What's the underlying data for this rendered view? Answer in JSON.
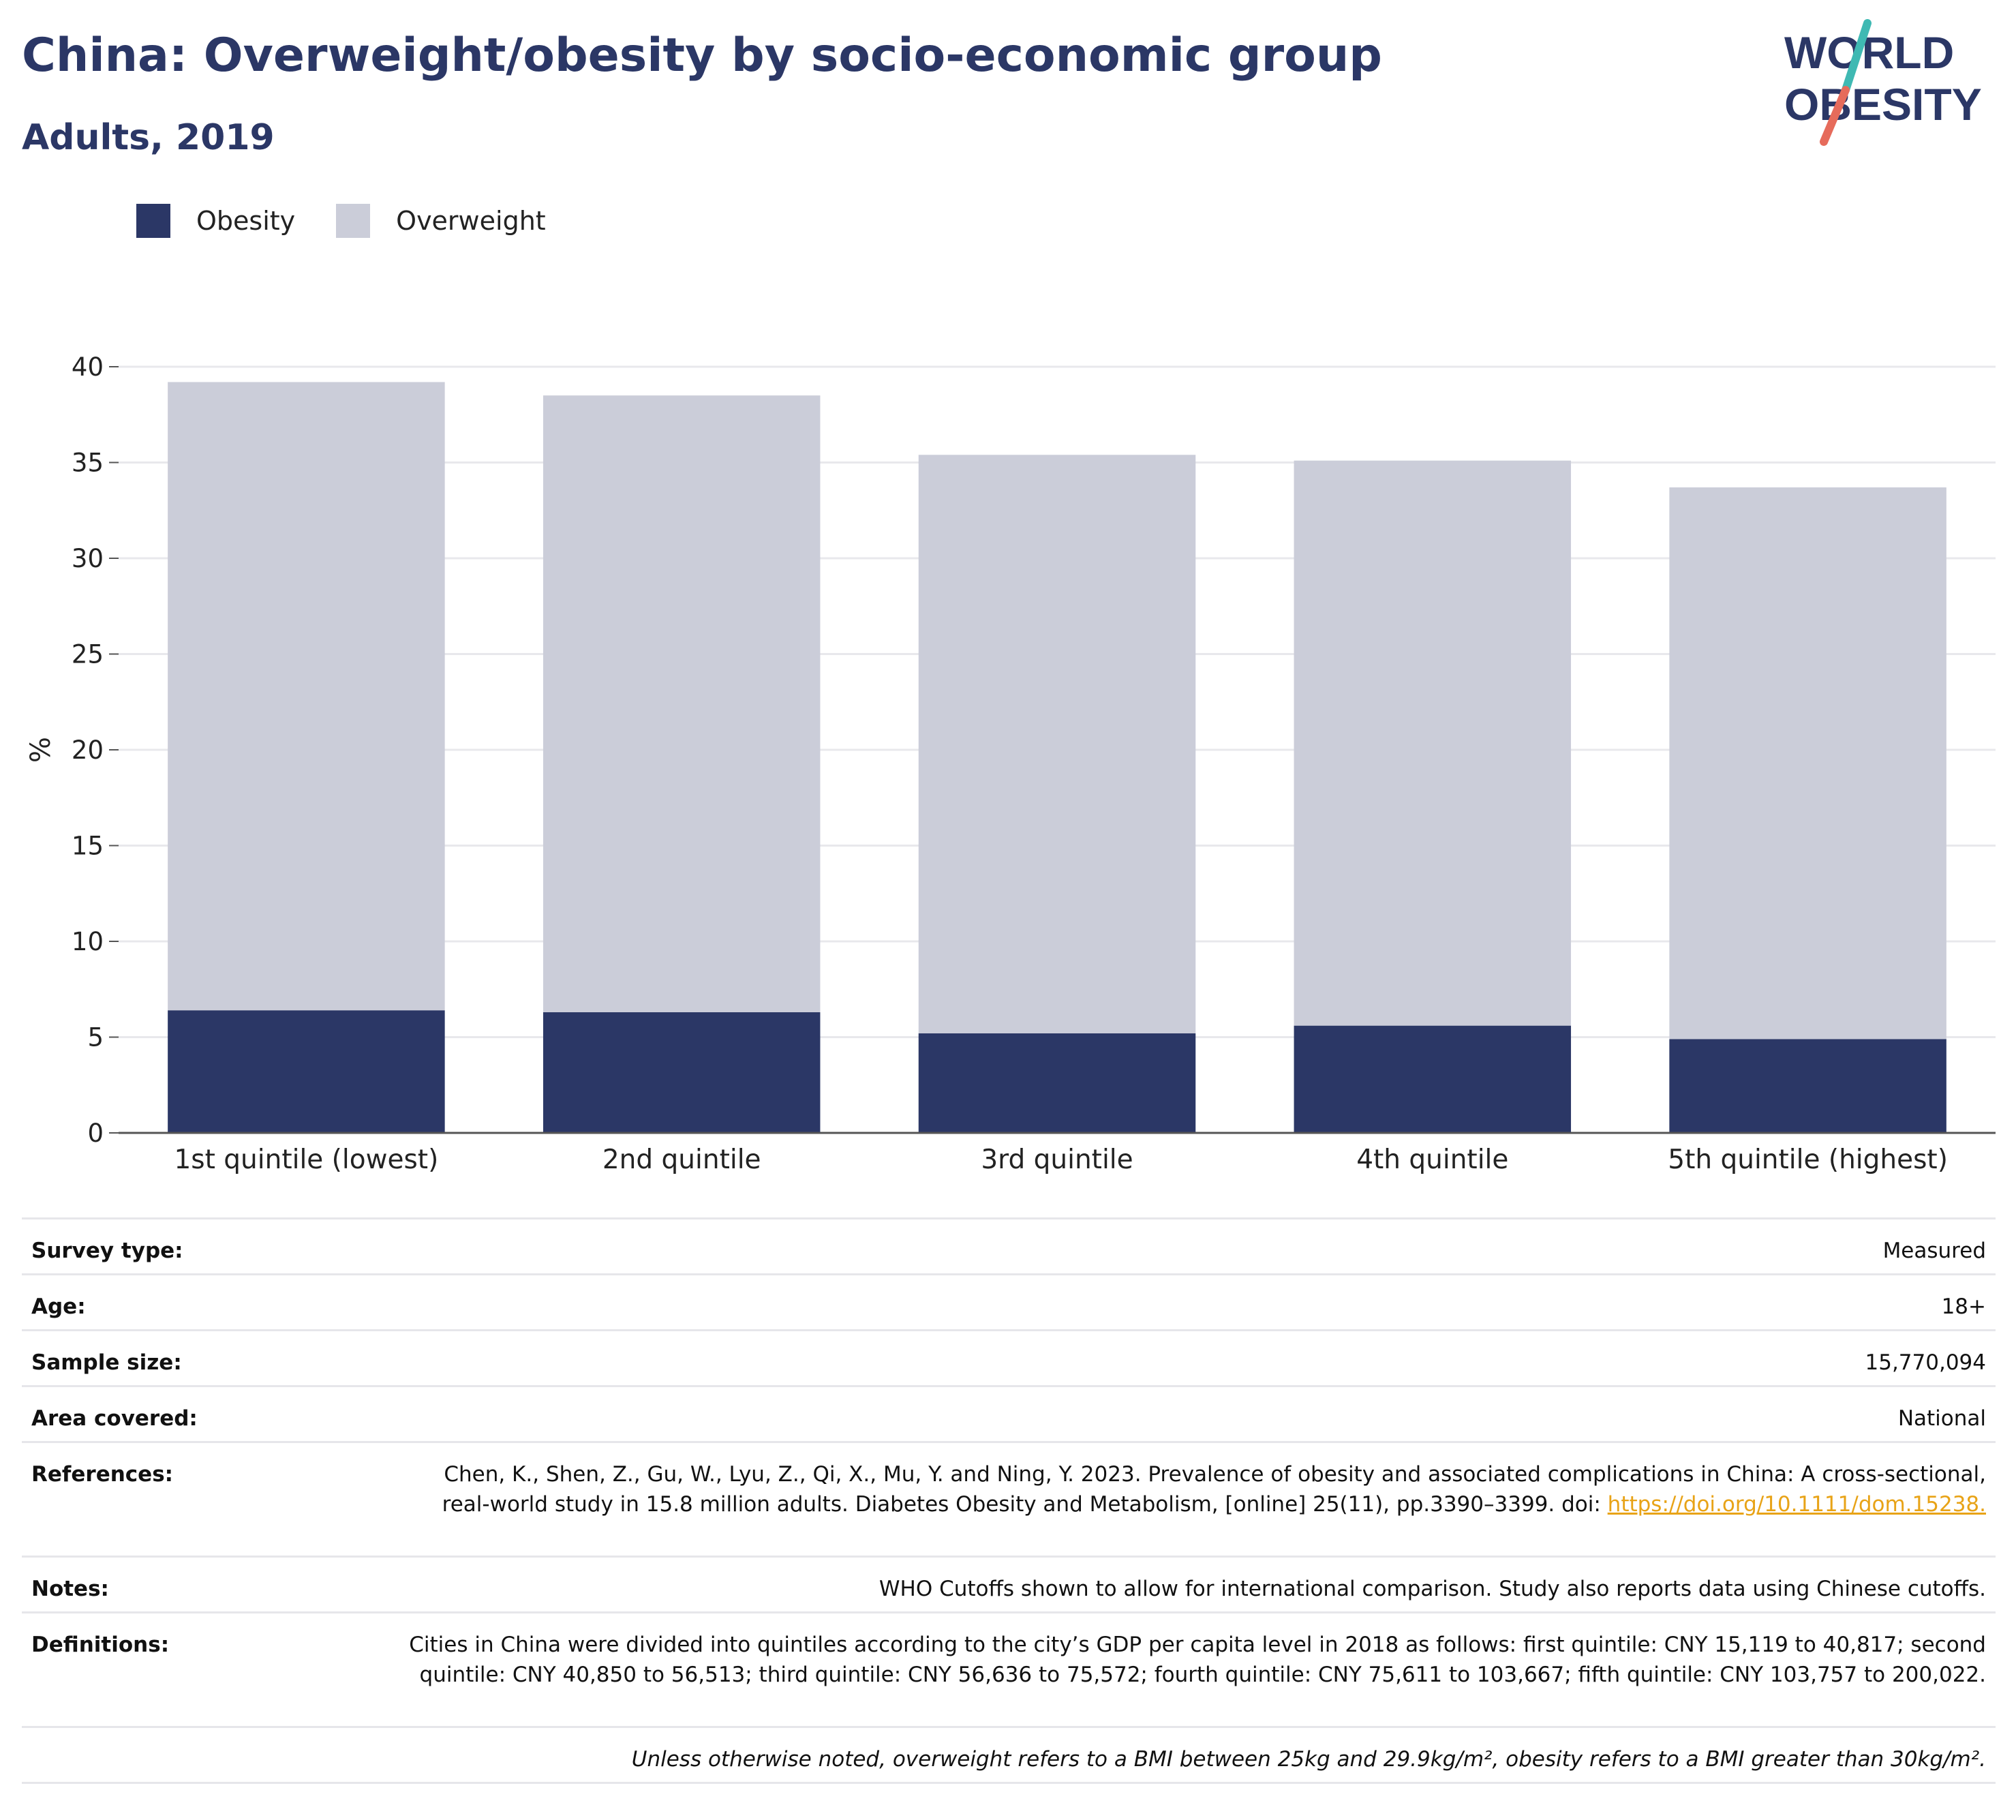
{
  "header": {
    "title": "China: Overweight/obesity by socio-economic group",
    "subtitle": "Adults, 2019",
    "logo_line1": "WORLD",
    "logo_line2": "OBESITY"
  },
  "colors": {
    "obesity": "#2b3766",
    "overweight": "#cbcdd9",
    "title": "#2b3766",
    "link": "#e8a317",
    "logo_teal": "#3fb9b3",
    "logo_coral": "#e66b5b"
  },
  "legend": [
    {
      "label": "Obesity",
      "color": "#2b3766"
    },
    {
      "label": "Overweight",
      "color": "#cbcdd9"
    }
  ],
  "chart_data": {
    "type": "bar",
    "stacked": true,
    "categories": [
      "1st quintile (lowest)",
      "2nd quintile",
      "3rd quintile",
      "4th quintile",
      "5th quintile (highest)"
    ],
    "series": [
      {
        "name": "Obesity",
        "values": [
          6.4,
          6.3,
          5.2,
          5.6,
          4.9
        ]
      },
      {
        "name": "Overweight",
        "values": [
          32.8,
          32.2,
          30.2,
          29.5,
          28.8
        ]
      }
    ],
    "ylabel": "%",
    "ylim": [
      0,
      40
    ],
    "yticks": [
      0,
      5,
      10,
      15,
      20,
      25,
      30,
      35,
      40
    ],
    "grid": true,
    "legend_position": "top-left"
  },
  "metadata": [
    {
      "label": "Survey type:",
      "value": "Measured"
    },
    {
      "label": "Age:",
      "value": "18+"
    },
    {
      "label": "Sample size:",
      "value": "15,770,094"
    },
    {
      "label": "Area covered:",
      "value": "National"
    },
    {
      "label": "References:",
      "value": "Chen, K., Shen, Z., Gu, W., Lyu, Z., Qi, X., Mu, Y. and Ning, Y. 2023. Prevalence of obesity and associated complications in China: A cross-sectional, real-world study in 15.8 million adults. Diabetes Obesity and Metabolism, [online] 25(11), pp.3390–3399. doi:",
      "link": "https://doi.org/10.1111/dom.15238."
    },
    {
      "label": "Notes:",
      "value": "WHO Cutoffs shown to allow for international comparison. Study also reports data using Chinese cutoffs."
    },
    {
      "label": "Definitions:",
      "value": "Cities in China were divided into quintiles according to the city’s GDP per capita level in 2018 as follows: first quintile: CNY 15,119 to 40,817; second quintile: CNY 40,850 to 56,513; third quintile: CNY 56,636 to 75,572; fourth quintile: CNY 75,611 to 103,667; fifth quintile: CNY 103,757 to 200,022."
    }
  ],
  "footnote": "Unless otherwise noted, overweight refers to a BMI between 25kg and 29.9kg/m², obesity refers to a BMI greater than 30kg/m²."
}
